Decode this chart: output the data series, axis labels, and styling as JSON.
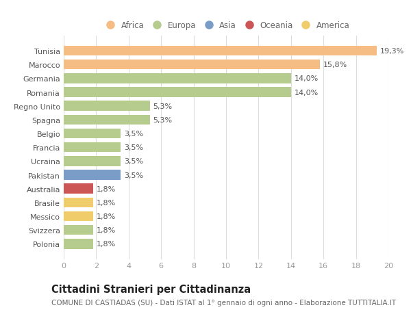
{
  "countries": [
    "Tunisia",
    "Marocco",
    "Germania",
    "Romania",
    "Regno Unito",
    "Spagna",
    "Belgio",
    "Francia",
    "Ucraina",
    "Pakistan",
    "Australia",
    "Brasile",
    "Messico",
    "Svizzera",
    "Polonia"
  ],
  "values": [
    19.3,
    15.8,
    14.0,
    14.0,
    5.3,
    5.3,
    3.5,
    3.5,
    3.5,
    3.5,
    1.8,
    1.8,
    1.8,
    1.8,
    1.8
  ],
  "labels": [
    "19,3%",
    "15,8%",
    "14,0%",
    "14,0%",
    "5,3%",
    "5,3%",
    "3,5%",
    "3,5%",
    "3,5%",
    "3,5%",
    "1,8%",
    "1,8%",
    "1,8%",
    "1,8%",
    "1,8%"
  ],
  "colors": [
    "#f5bc84",
    "#f5bc84",
    "#b5cc8e",
    "#b5cc8e",
    "#b5cc8e",
    "#b5cc8e",
    "#b5cc8e",
    "#b5cc8e",
    "#b5cc8e",
    "#7a9dc8",
    "#cc5555",
    "#f0cc6a",
    "#f0cc6a",
    "#b5cc8e",
    "#b5cc8e"
  ],
  "legend": {
    "labels": [
      "Africa",
      "Europa",
      "Asia",
      "Oceania",
      "America"
    ],
    "colors": [
      "#f5bc84",
      "#b5cc8e",
      "#7a9dc8",
      "#cc5555",
      "#f0cc6a"
    ]
  },
  "title": "Cittadini Stranieri per Cittadinanza",
  "subtitle": "COMUNE DI CASTIADAS (SU) - Dati ISTAT al 1° gennaio di ogni anno - Elaborazione TUTTITALIA.IT",
  "xlim": [
    0,
    20
  ],
  "xticks": [
    0,
    2,
    4,
    6,
    8,
    10,
    12,
    14,
    16,
    18,
    20
  ],
  "background_color": "#ffffff",
  "grid_color": "#dddddd",
  "bar_height": 0.72,
  "label_fontsize": 8,
  "tick_fontsize": 8,
  "title_fontsize": 10.5,
  "subtitle_fontsize": 7.5,
  "legend_fontsize": 8.5
}
